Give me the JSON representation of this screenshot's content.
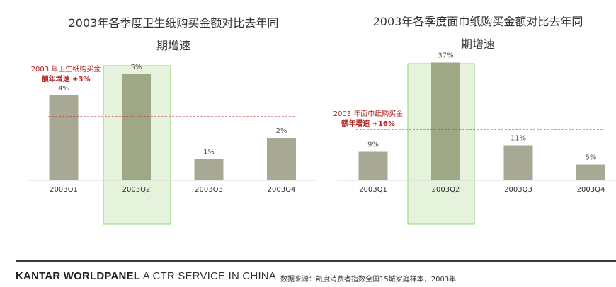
{
  "chart_data": [
    {
      "type": "bar",
      "title": "2003年各季度卫生纸购买金额对比去年同期增速",
      "title_lines": [
        "2003年各季度卫生纸购买金额对比去年同",
        "期增速"
      ],
      "categories": [
        "2003Q1",
        "2003Q2",
        "2003Q3",
        "2003Q4"
      ],
      "values": [
        4,
        5,
        1,
        2
      ],
      "value_labels": [
        "4%",
        "5%",
        "1%",
        "2%"
      ],
      "highlight_category": "2003Q2",
      "reference_line": {
        "value": 3,
        "label_lines": [
          "2003  年卫生纸购买金",
          "额年增速  +3%"
        ]
      },
      "ylim": [
        0,
        6
      ]
    },
    {
      "type": "bar",
      "title": "2003年各季度面巾纸购买金额对比去年同期增速",
      "title_lines": [
        "2003年各季度面巾纸购买金额对比去年同",
        "期增速"
      ],
      "categories": [
        "2003Q1",
        "2003Q2",
        "2003Q3",
        "2003Q4"
      ],
      "values": [
        9,
        37,
        11,
        5
      ],
      "value_labels": [
        "9%",
        "37%",
        "11%",
        "5%"
      ],
      "highlight_category": "2003Q2",
      "reference_line": {
        "value": 16,
        "label_lines": [
          "2003  年面巾纸购买金",
          "额年增速  +16%"
        ]
      },
      "ylim": [
        0,
        40
      ]
    }
  ],
  "colors": {
    "bar": "#a8a995",
    "bar_highlight": "#9ea884",
    "highlight_fill": "#e6f3dc",
    "highlight_border": "#8fd474",
    "reference_line": "#b03030",
    "reference_label": "#b02020",
    "value_label": "#555555",
    "tick_label": "#333333"
  },
  "footer": {
    "brand_bold": "KANTAR WORLDPANEL",
    "brand_tag": "A CTR SERVICE IN CHINA",
    "source": "数据来源：凯度消费者指数全国15城家庭样本，2003年"
  }
}
